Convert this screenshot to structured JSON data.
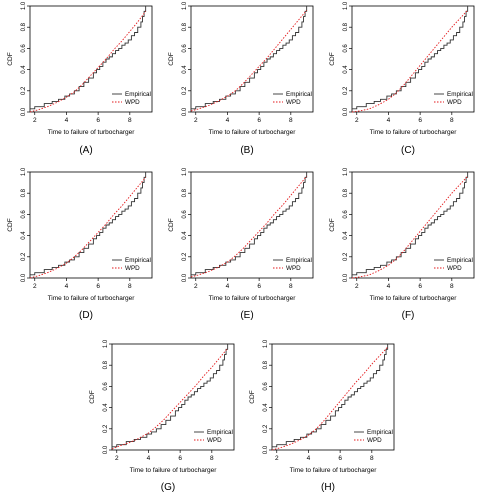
{
  "chart_data": [
    {
      "type": "line",
      "letter": "(A)",
      "xlabel": "Time to failure of turbocharger",
      "ylabel": "CDF",
      "xlim": [
        1.7,
        9.4
      ],
      "ylim": [
        0,
        1
      ],
      "xticks": [
        2,
        4,
        6,
        8
      ],
      "yticks": [
        0.0,
        0.2,
        0.4,
        0.6,
        0.8,
        1.0
      ],
      "legend_position": "bottom-right",
      "series": [
        {
          "name": "Empirical",
          "color": "#333333",
          "style": "solid",
          "x": [
            1.6,
            2.0,
            2.6,
            3.1,
            3.5,
            3.9,
            4.2,
            4.5,
            4.8,
            5.1,
            5.4,
            5.7,
            5.9,
            6.1,
            6.3,
            6.5,
            6.7,
            6.9,
            7.1,
            7.3,
            7.5,
            7.7,
            7.9,
            8.1,
            8.3,
            8.5,
            8.7,
            8.8,
            8.9,
            9.0
          ],
          "y": [
            0.03,
            0.05,
            0.08,
            0.1,
            0.12,
            0.15,
            0.17,
            0.2,
            0.24,
            0.28,
            0.32,
            0.37,
            0.4,
            0.43,
            0.47,
            0.5,
            0.52,
            0.55,
            0.58,
            0.6,
            0.63,
            0.65,
            0.68,
            0.72,
            0.75,
            0.8,
            0.85,
            0.9,
            0.95,
            1.0
          ]
        },
        {
          "name": "WPD",
          "color": "#e31a1c",
          "style": "dotted",
          "x": [
            1.6,
            2.2,
            2.8,
            3.4,
            4.0,
            4.5,
            5.0,
            5.5,
            6.0,
            6.5,
            7.0,
            7.5,
            8.0,
            8.5,
            9.0
          ],
          "y": [
            0.0,
            0.02,
            0.05,
            0.09,
            0.14,
            0.19,
            0.26,
            0.34,
            0.42,
            0.5,
            0.59,
            0.67,
            0.76,
            0.85,
            0.95
          ]
        }
      ]
    },
    {
      "type": "line",
      "letter": "(B)",
      "xlabel": "Time to failure of turbocharger",
      "ylabel": "CDF",
      "xlim": [
        1.7,
        9.4
      ],
      "ylim": [
        0,
        1
      ],
      "xticks": [
        2,
        4,
        6,
        8
      ],
      "yticks": [
        0.0,
        0.2,
        0.4,
        0.6,
        0.8,
        1.0
      ],
      "legend_position": "bottom-right",
      "series": [
        {
          "name": "Empirical",
          "color": "#333333",
          "style": "solid",
          "x": [
            1.6,
            2.0,
            2.6,
            3.1,
            3.5,
            3.9,
            4.2,
            4.5,
            4.8,
            5.1,
            5.4,
            5.7,
            5.9,
            6.1,
            6.3,
            6.5,
            6.7,
            6.9,
            7.1,
            7.3,
            7.5,
            7.7,
            7.9,
            8.1,
            8.3,
            8.5,
            8.7,
            8.8,
            8.9,
            9.0
          ],
          "y": [
            0.03,
            0.05,
            0.08,
            0.1,
            0.12,
            0.15,
            0.17,
            0.2,
            0.24,
            0.28,
            0.32,
            0.37,
            0.4,
            0.43,
            0.47,
            0.5,
            0.52,
            0.55,
            0.58,
            0.6,
            0.63,
            0.65,
            0.68,
            0.72,
            0.75,
            0.8,
            0.85,
            0.9,
            0.95,
            1.0
          ]
        },
        {
          "name": "WPD",
          "color": "#e31a1c",
          "style": "dotted",
          "x": [
            1.6,
            2.2,
            2.8,
            3.4,
            4.0,
            4.5,
            5.0,
            5.5,
            6.0,
            6.5,
            7.0,
            7.5,
            8.0,
            8.5,
            9.0
          ],
          "y": [
            0.01,
            0.03,
            0.06,
            0.1,
            0.15,
            0.2,
            0.27,
            0.35,
            0.43,
            0.51,
            0.6,
            0.69,
            0.78,
            0.87,
            0.96
          ]
        }
      ]
    },
    {
      "type": "line",
      "letter": "(C)",
      "xlabel": "Time to failure of turbocharger",
      "ylabel": "CDF",
      "xlim": [
        1.7,
        9.4
      ],
      "ylim": [
        0,
        1
      ],
      "xticks": [
        2,
        4,
        6,
        8
      ],
      "yticks": [
        0.0,
        0.2,
        0.4,
        0.6,
        0.8,
        1.0
      ],
      "legend_position": "bottom-right",
      "series": [
        {
          "name": "Empirical",
          "color": "#333333",
          "style": "solid",
          "x": [
            1.6,
            2.0,
            2.6,
            3.1,
            3.5,
            3.9,
            4.2,
            4.5,
            4.8,
            5.1,
            5.4,
            5.7,
            5.9,
            6.1,
            6.3,
            6.5,
            6.7,
            6.9,
            7.1,
            7.3,
            7.5,
            7.7,
            7.9,
            8.1,
            8.3,
            8.5,
            8.7,
            8.8,
            8.9,
            9.0
          ],
          "y": [
            0.03,
            0.05,
            0.08,
            0.1,
            0.12,
            0.15,
            0.17,
            0.2,
            0.24,
            0.28,
            0.32,
            0.37,
            0.4,
            0.43,
            0.47,
            0.5,
            0.52,
            0.55,
            0.58,
            0.6,
            0.63,
            0.65,
            0.68,
            0.72,
            0.75,
            0.8,
            0.85,
            0.9,
            0.95,
            1.0
          ]
        },
        {
          "name": "WPD",
          "color": "#e31a1c",
          "style": "dotted",
          "x": [
            1.6,
            2.2,
            2.8,
            3.4,
            4.0,
            4.5,
            5.0,
            5.5,
            6.0,
            6.5,
            7.0,
            7.5,
            8.0,
            8.5,
            9.0
          ],
          "y": [
            0.0,
            0.01,
            0.03,
            0.07,
            0.12,
            0.18,
            0.26,
            0.35,
            0.44,
            0.53,
            0.62,
            0.71,
            0.8,
            0.88,
            0.96
          ]
        }
      ]
    },
    {
      "type": "line",
      "letter": "(D)",
      "xlabel": "Time to failure of turbocharger",
      "ylabel": "CDF",
      "xlim": [
        1.7,
        9.4
      ],
      "ylim": [
        0,
        1
      ],
      "xticks": [
        2,
        4,
        6,
        8
      ],
      "yticks": [
        0.0,
        0.2,
        0.4,
        0.6,
        0.8,
        1.0
      ],
      "legend_position": "bottom-right",
      "series": [
        {
          "name": "Empirical",
          "color": "#333333",
          "style": "solid",
          "x": [
            1.6,
            2.0,
            2.6,
            3.1,
            3.5,
            3.9,
            4.2,
            4.5,
            4.8,
            5.1,
            5.4,
            5.7,
            5.9,
            6.1,
            6.3,
            6.5,
            6.7,
            6.9,
            7.1,
            7.3,
            7.5,
            7.7,
            7.9,
            8.1,
            8.3,
            8.5,
            8.7,
            8.8,
            8.9,
            9.0
          ],
          "y": [
            0.03,
            0.05,
            0.08,
            0.1,
            0.12,
            0.15,
            0.17,
            0.2,
            0.24,
            0.28,
            0.32,
            0.37,
            0.4,
            0.43,
            0.47,
            0.5,
            0.52,
            0.55,
            0.58,
            0.6,
            0.63,
            0.65,
            0.68,
            0.72,
            0.75,
            0.8,
            0.85,
            0.9,
            0.95,
            1.0
          ]
        },
        {
          "name": "WPD",
          "color": "#e31a1c",
          "style": "dotted",
          "x": [
            1.6,
            2.2,
            2.8,
            3.4,
            4.0,
            4.5,
            5.0,
            5.5,
            6.0,
            6.5,
            7.0,
            7.5,
            8.0,
            8.5,
            9.0
          ],
          "y": [
            0.0,
            0.02,
            0.05,
            0.09,
            0.14,
            0.2,
            0.27,
            0.35,
            0.43,
            0.51,
            0.6,
            0.68,
            0.77,
            0.86,
            0.95
          ]
        }
      ]
    },
    {
      "type": "line",
      "letter": "(E)",
      "xlabel": "Time to failure of turbocharger",
      "ylabel": "CDF",
      "xlim": [
        1.7,
        9.4
      ],
      "ylim": [
        0,
        1
      ],
      "xticks": [
        2,
        4,
        6,
        8
      ],
      "yticks": [
        0.0,
        0.2,
        0.4,
        0.6,
        0.8,
        1.0
      ],
      "legend_position": "bottom-right",
      "series": [
        {
          "name": "Empirical",
          "color": "#333333",
          "style": "solid",
          "x": [
            1.6,
            2.0,
            2.6,
            3.1,
            3.5,
            3.9,
            4.2,
            4.5,
            4.8,
            5.1,
            5.4,
            5.7,
            5.9,
            6.1,
            6.3,
            6.5,
            6.7,
            6.9,
            7.1,
            7.3,
            7.5,
            7.7,
            7.9,
            8.1,
            8.3,
            8.5,
            8.7,
            8.8,
            8.9,
            9.0
          ],
          "y": [
            0.03,
            0.05,
            0.08,
            0.1,
            0.12,
            0.15,
            0.17,
            0.2,
            0.24,
            0.28,
            0.32,
            0.37,
            0.4,
            0.43,
            0.47,
            0.5,
            0.52,
            0.55,
            0.58,
            0.6,
            0.63,
            0.65,
            0.68,
            0.72,
            0.75,
            0.8,
            0.85,
            0.9,
            0.95,
            1.0
          ]
        },
        {
          "name": "WPD",
          "color": "#e31a1c",
          "style": "dotted",
          "x": [
            1.6,
            2.2,
            2.8,
            3.4,
            4.0,
            4.5,
            5.0,
            5.5,
            6.0,
            6.5,
            7.0,
            7.5,
            8.0,
            8.5,
            9.0
          ],
          "y": [
            0.01,
            0.03,
            0.06,
            0.1,
            0.15,
            0.21,
            0.28,
            0.36,
            0.44,
            0.52,
            0.61,
            0.69,
            0.78,
            0.87,
            0.96
          ]
        }
      ]
    },
    {
      "type": "line",
      "letter": "(F)",
      "xlabel": "Time to failure of turbocharger",
      "ylabel": "CDF",
      "xlim": [
        1.7,
        9.4
      ],
      "ylim": [
        0,
        1
      ],
      "xticks": [
        2,
        4,
        6,
        8
      ],
      "yticks": [
        0.0,
        0.2,
        0.4,
        0.6,
        0.8,
        1.0
      ],
      "legend_position": "bottom-right",
      "series": [
        {
          "name": "Empirical",
          "color": "#333333",
          "style": "solid",
          "x": [
            1.6,
            2.0,
            2.6,
            3.1,
            3.5,
            3.9,
            4.2,
            4.5,
            4.8,
            5.1,
            5.4,
            5.7,
            5.9,
            6.1,
            6.3,
            6.5,
            6.7,
            6.9,
            7.1,
            7.3,
            7.5,
            7.7,
            7.9,
            8.1,
            8.3,
            8.5,
            8.7,
            8.8,
            8.9,
            9.0
          ],
          "y": [
            0.03,
            0.05,
            0.08,
            0.1,
            0.12,
            0.15,
            0.17,
            0.2,
            0.24,
            0.28,
            0.32,
            0.37,
            0.4,
            0.43,
            0.47,
            0.5,
            0.52,
            0.55,
            0.58,
            0.6,
            0.63,
            0.65,
            0.68,
            0.72,
            0.75,
            0.8,
            0.85,
            0.9,
            0.95,
            1.0
          ]
        },
        {
          "name": "WPD",
          "color": "#e31a1c",
          "style": "dotted",
          "x": [
            1.6,
            2.2,
            2.8,
            3.4,
            4.0,
            4.5,
            5.0,
            5.5,
            6.0,
            6.5,
            7.0,
            7.5,
            8.0,
            8.5,
            9.0
          ],
          "y": [
            0.0,
            0.01,
            0.03,
            0.07,
            0.12,
            0.18,
            0.26,
            0.35,
            0.44,
            0.53,
            0.62,
            0.71,
            0.8,
            0.88,
            0.96
          ]
        }
      ]
    },
    {
      "type": "line",
      "letter": "(G)",
      "xlabel": "Time to failure of turbocharger",
      "ylabel": "CDF",
      "xlim": [
        1.7,
        9.4
      ],
      "ylim": [
        0,
        1
      ],
      "xticks": [
        2,
        4,
        6,
        8
      ],
      "yticks": [
        0.0,
        0.2,
        0.4,
        0.6,
        0.8,
        1.0
      ],
      "legend_position": "bottom-right",
      "series": [
        {
          "name": "Empirical",
          "color": "#333333",
          "style": "solid",
          "x": [
            1.6,
            2.0,
            2.6,
            3.1,
            3.5,
            3.9,
            4.2,
            4.5,
            4.8,
            5.1,
            5.4,
            5.7,
            5.9,
            6.1,
            6.3,
            6.5,
            6.7,
            6.9,
            7.1,
            7.3,
            7.5,
            7.7,
            7.9,
            8.1,
            8.3,
            8.5,
            8.7,
            8.8,
            8.9,
            9.0
          ],
          "y": [
            0.03,
            0.05,
            0.08,
            0.1,
            0.12,
            0.15,
            0.17,
            0.2,
            0.24,
            0.28,
            0.32,
            0.37,
            0.4,
            0.43,
            0.47,
            0.5,
            0.52,
            0.55,
            0.58,
            0.6,
            0.63,
            0.65,
            0.68,
            0.72,
            0.75,
            0.8,
            0.85,
            0.9,
            0.95,
            1.0
          ]
        },
        {
          "name": "WPD",
          "color": "#e31a1c",
          "style": "dotted",
          "x": [
            1.6,
            2.2,
            2.8,
            3.4,
            4.0,
            4.5,
            5.0,
            5.5,
            6.0,
            6.5,
            7.0,
            7.5,
            8.0,
            8.5,
            9.0
          ],
          "y": [
            0.01,
            0.04,
            0.07,
            0.11,
            0.16,
            0.22,
            0.29,
            0.37,
            0.45,
            0.53,
            0.61,
            0.7,
            0.78,
            0.87,
            0.96
          ]
        }
      ]
    },
    {
      "type": "line",
      "letter": "(H)",
      "xlabel": "Time to failure of turbocharger",
      "ylabel": "CDF",
      "xlim": [
        1.7,
        9.4
      ],
      "ylim": [
        0,
        1
      ],
      "xticks": [
        2,
        4,
        6,
        8
      ],
      "yticks": [
        0.0,
        0.2,
        0.4,
        0.6,
        0.8,
        1.0
      ],
      "legend_position": "bottom-right",
      "series": [
        {
          "name": "Empirical",
          "color": "#333333",
          "style": "solid",
          "x": [
            1.6,
            2.0,
            2.6,
            3.1,
            3.5,
            3.9,
            4.2,
            4.5,
            4.8,
            5.1,
            5.4,
            5.7,
            5.9,
            6.1,
            6.3,
            6.5,
            6.7,
            6.9,
            7.1,
            7.3,
            7.5,
            7.7,
            7.9,
            8.1,
            8.3,
            8.5,
            8.7,
            8.8,
            8.9,
            9.0
          ],
          "y": [
            0.03,
            0.05,
            0.08,
            0.1,
            0.12,
            0.15,
            0.17,
            0.2,
            0.24,
            0.28,
            0.32,
            0.37,
            0.4,
            0.43,
            0.47,
            0.5,
            0.52,
            0.55,
            0.58,
            0.6,
            0.63,
            0.65,
            0.68,
            0.72,
            0.75,
            0.8,
            0.85,
            0.9,
            0.95,
            1.0
          ]
        },
        {
          "name": "WPD",
          "color": "#e31a1c",
          "style": "dotted",
          "x": [
            1.6,
            2.2,
            2.8,
            3.4,
            4.0,
            4.5,
            5.0,
            5.5,
            6.0,
            6.5,
            7.0,
            7.5,
            8.0,
            8.5,
            9.0
          ],
          "y": [
            0.0,
            0.02,
            0.05,
            0.09,
            0.14,
            0.2,
            0.28,
            0.37,
            0.46,
            0.55,
            0.64,
            0.72,
            0.81,
            0.89,
            0.97
          ]
        }
      ]
    }
  ]
}
